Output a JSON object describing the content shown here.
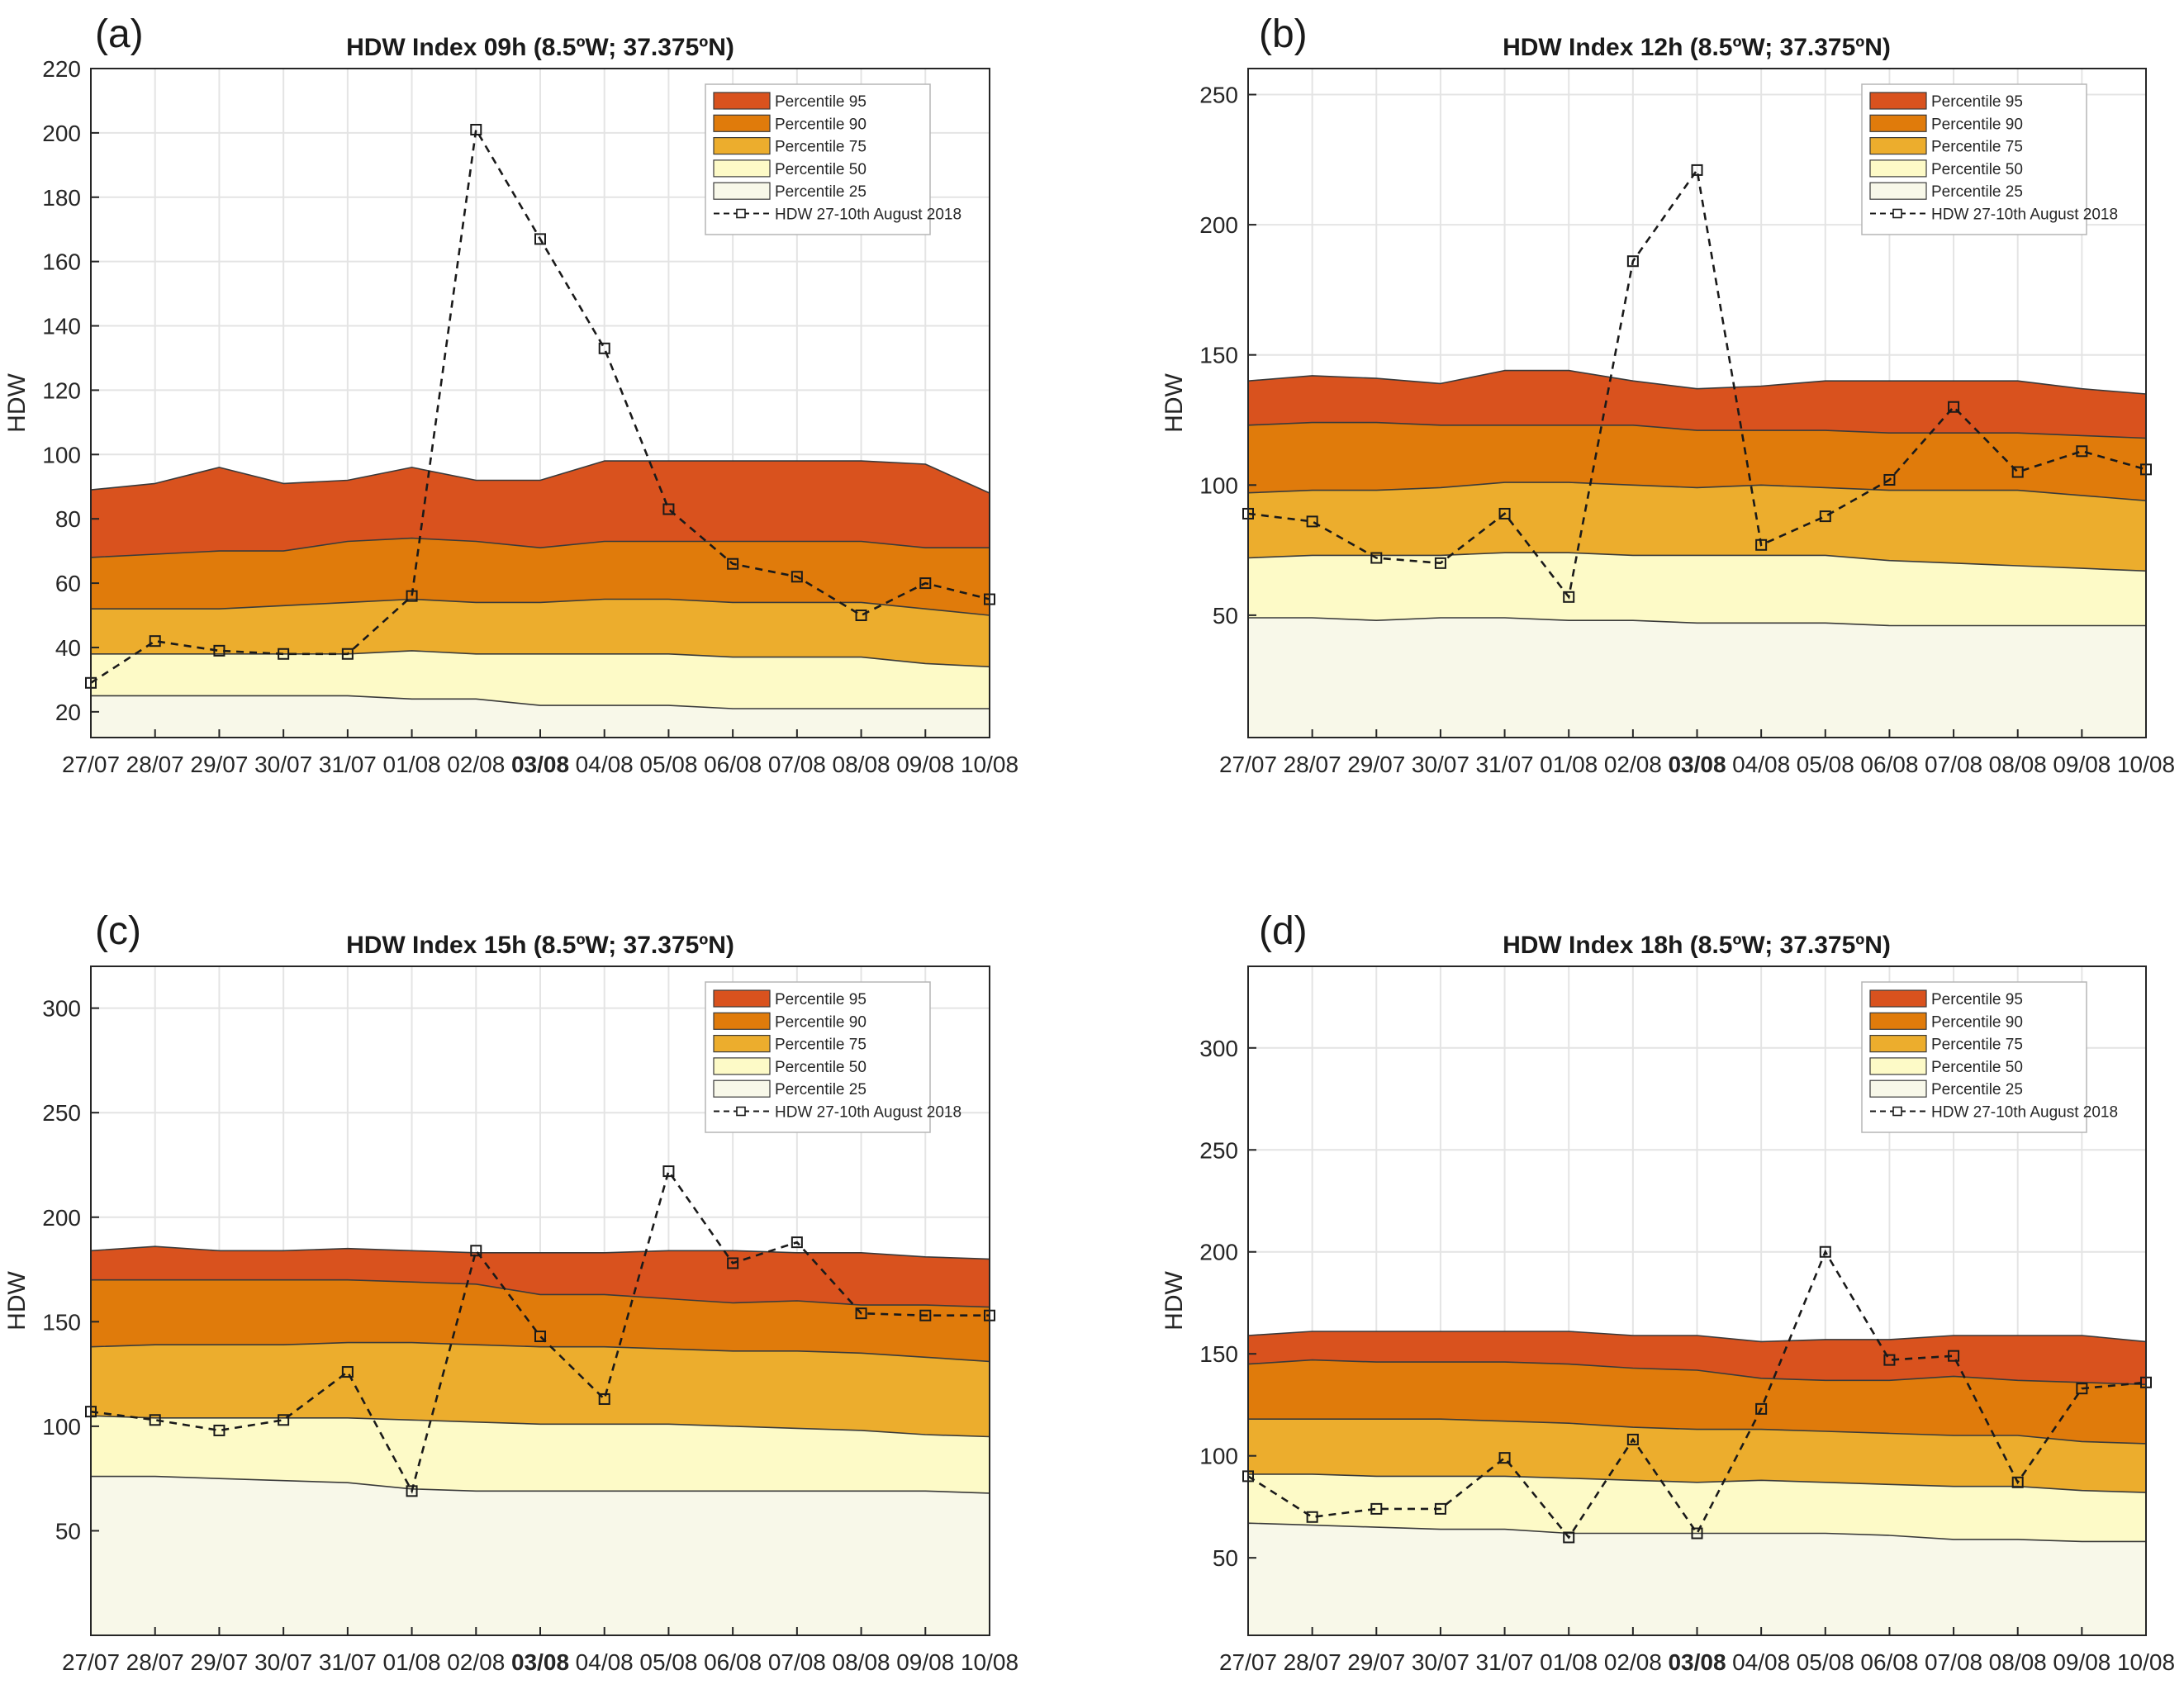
{
  "figure": {
    "legend_entries": [
      "Percentile 95",
      "Percentile 90",
      "Percentile 75",
      "Percentile 50",
      "Percentile 25"
    ],
    "legend_line_label": "HDW 27-10th August 2018",
    "band_colors": [
      "#d9521e",
      "#e07b0b",
      "#ecad2d",
      "#fdfac7",
      "#f8f8e9"
    ],
    "line_color": "#1a1a1a",
    "grid_color": "#e4e4e4"
  },
  "chart_data": [
    {
      "type": "area",
      "panel_label": "(a)",
      "title": "HDW Index 09h (8.5ºW; 37.375ºN)",
      "xlabel": "",
      "ylabel": "HDW",
      "categories": [
        "27/07",
        "28/07",
        "29/07",
        "30/07",
        "31/07",
        "01/08",
        "02/08",
        "03/08",
        "04/08",
        "05/08",
        "06/08",
        "07/08",
        "08/08",
        "09/08",
        "10/08"
      ],
      "highlight_category": "03/08",
      "ylim": [
        12,
        220
      ],
      "yticks": [
        20,
        40,
        60,
        80,
        100,
        120,
        140,
        160,
        180,
        200,
        220
      ],
      "series": [
        {
          "name": "Percentile 95",
          "values": [
            89,
            91,
            96,
            91,
            92,
            96,
            92,
            92,
            98,
            98,
            98,
            98,
            98,
            97,
            88
          ]
        },
        {
          "name": "Percentile 90",
          "values": [
            68,
            69,
            70,
            70,
            73,
            74,
            73,
            71,
            73,
            73,
            73,
            73,
            73,
            71,
            71
          ]
        },
        {
          "name": "Percentile 75",
          "values": [
            52,
            52,
            52,
            53,
            54,
            55,
            54,
            54,
            55,
            55,
            54,
            54,
            54,
            52,
            50
          ]
        },
        {
          "name": "Percentile 50",
          "values": [
            38,
            38,
            38,
            38,
            38,
            39,
            38,
            38,
            38,
            38,
            37,
            37,
            37,
            35,
            34
          ]
        },
        {
          "name": "Percentile 25",
          "values": [
            25,
            25,
            25,
            25,
            25,
            24,
            24,
            22,
            22,
            22,
            21,
            21,
            21,
            21,
            21
          ]
        },
        {
          "name": "HDW 27-10th August 2018",
          "values": [
            29,
            42,
            39,
            38,
            38,
            56,
            201,
            167,
            133,
            83,
            66,
            62,
            50,
            60,
            55
          ]
        }
      ]
    },
    {
      "type": "area",
      "panel_label": "(b)",
      "title": "HDW Index 12h (8.5ºW; 37.375ºN)",
      "xlabel": "",
      "ylabel": "HDW",
      "categories": [
        "27/07",
        "28/07",
        "29/07",
        "30/07",
        "31/07",
        "01/08",
        "02/08",
        "03/08",
        "04/08",
        "05/08",
        "06/08",
        "07/08",
        "08/08",
        "09/08",
        "10/08"
      ],
      "highlight_category": "03/08",
      "ylim": [
        3,
        260
      ],
      "yticks": [
        50,
        100,
        150,
        200,
        250
      ],
      "series": [
        {
          "name": "Percentile 95",
          "values": [
            140,
            142,
            141,
            139,
            144,
            144,
            140,
            137,
            138,
            140,
            140,
            140,
            140,
            137,
            135
          ]
        },
        {
          "name": "Percentile 90",
          "values": [
            123,
            124,
            124,
            123,
            123,
            123,
            123,
            121,
            121,
            121,
            120,
            120,
            120,
            119,
            118
          ]
        },
        {
          "name": "Percentile 75",
          "values": [
            97,
            98,
            98,
            99,
            101,
            101,
            100,
            99,
            100,
            99,
            98,
            98,
            98,
            96,
            94
          ]
        },
        {
          "name": "Percentile 50",
          "values": [
            72,
            73,
            73,
            73,
            74,
            74,
            73,
            73,
            73,
            73,
            71,
            70,
            69,
            68,
            67
          ]
        },
        {
          "name": "Percentile 25",
          "values": [
            49,
            49,
            48,
            49,
            49,
            48,
            48,
            47,
            47,
            47,
            46,
            46,
            46,
            46,
            46
          ]
        },
        {
          "name": "HDW 27-10th August 2018",
          "values": [
            89,
            86,
            72,
            70,
            89,
            57,
            186,
            221,
            77,
            88,
            102,
            130,
            105,
            113,
            106
          ]
        }
      ]
    },
    {
      "type": "area",
      "panel_label": "(c)",
      "title": "HDW Index 15h (8.5ºW; 37.375ºN)",
      "xlabel": "",
      "ylabel": "HDW",
      "categories": [
        "27/07",
        "28/07",
        "29/07",
        "30/07",
        "31/07",
        "01/08",
        "02/08",
        "03/08",
        "04/08",
        "05/08",
        "06/08",
        "07/08",
        "08/08",
        "09/08",
        "10/08"
      ],
      "highlight_category": "03/08",
      "ylim": [
        0,
        320
      ],
      "yticks": [
        50,
        100,
        150,
        200,
        250,
        300
      ],
      "series": [
        {
          "name": "Percentile 95",
          "values": [
            184,
            186,
            184,
            184,
            185,
            184,
            183,
            183,
            183,
            184,
            184,
            183,
            183,
            181,
            180
          ]
        },
        {
          "name": "Percentile 90",
          "values": [
            170,
            170,
            170,
            170,
            170,
            169,
            168,
            163,
            163,
            161,
            159,
            160,
            158,
            158,
            157
          ]
        },
        {
          "name": "Percentile 75",
          "values": [
            138,
            139,
            139,
            139,
            140,
            140,
            139,
            138,
            138,
            137,
            136,
            136,
            135,
            133,
            131
          ]
        },
        {
          "name": "Percentile 50",
          "values": [
            105,
            104,
            104,
            104,
            104,
            103,
            102,
            101,
            101,
            101,
            100,
            99,
            98,
            96,
            95
          ]
        },
        {
          "name": "Percentile 25",
          "values": [
            76,
            76,
            75,
            74,
            73,
            70,
            69,
            69,
            69,
            69,
            69,
            69,
            69,
            69,
            68
          ]
        },
        {
          "name": "HDW 27-10th August 2018",
          "values": [
            107,
            103,
            98,
            103,
            126,
            69,
            184,
            143,
            113,
            222,
            178,
            188,
            154,
            153,
            153
          ]
        }
      ]
    },
    {
      "type": "area",
      "panel_label": "(d)",
      "title": "HDW Index 18h (8.5ºW; 37.375ºN)",
      "xlabel": "",
      "ylabel": "HDW",
      "categories": [
        "27/07",
        "28/07",
        "29/07",
        "30/07",
        "31/07",
        "01/08",
        "02/08",
        "03/08",
        "04/08",
        "05/08",
        "06/08",
        "07/08",
        "08/08",
        "09/08",
        "10/08"
      ],
      "highlight_category": "03/08",
      "ylim": [
        12,
        340
      ],
      "yticks": [
        50,
        100,
        150,
        200,
        250,
        300
      ],
      "series": [
        {
          "name": "Percentile 95",
          "values": [
            159,
            161,
            161,
            161,
            161,
            161,
            159,
            159,
            156,
            157,
            157,
            159,
            159,
            159,
            156
          ]
        },
        {
          "name": "Percentile 90",
          "values": [
            145,
            147,
            146,
            146,
            146,
            145,
            143,
            142,
            138,
            137,
            137,
            139,
            137,
            136,
            135
          ]
        },
        {
          "name": "Percentile 75",
          "values": [
            118,
            118,
            118,
            118,
            117,
            116,
            114,
            113,
            113,
            112,
            111,
            110,
            110,
            107,
            106
          ]
        },
        {
          "name": "Percentile 50",
          "values": [
            91,
            91,
            90,
            90,
            90,
            89,
            88,
            87,
            88,
            87,
            86,
            85,
            85,
            83,
            82
          ]
        },
        {
          "name": "Percentile 25",
          "values": [
            67,
            66,
            65,
            64,
            64,
            62,
            62,
            62,
            62,
            62,
            61,
            59,
            59,
            58,
            58
          ]
        },
        {
          "name": "HDW 27-10th August 2018",
          "values": [
            90,
            70,
            74,
            74,
            99,
            60,
            108,
            62,
            123,
            200,
            147,
            149,
            87,
            133,
            136
          ]
        }
      ]
    }
  ]
}
